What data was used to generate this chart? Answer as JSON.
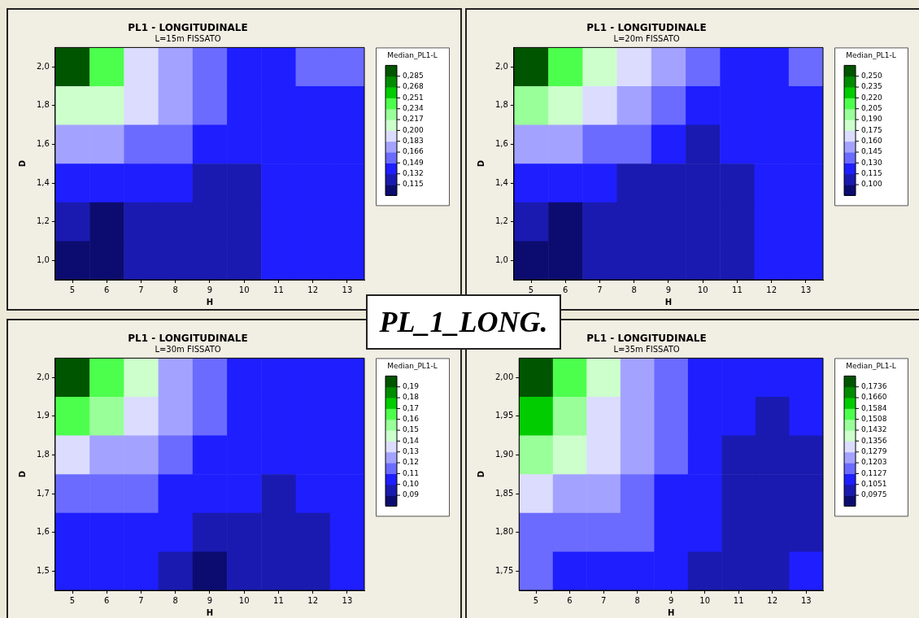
{
  "chart_data": [
    {
      "type": "heatmap",
      "title": "PL1 - LONGITUDINALE",
      "subtitle": "L=15m FISSATO",
      "xlabel": "H",
      "ylabel": "D",
      "clabel": "Median_PL1-L",
      "annotations": [
        "PL_1_LONG."
      ],
      "categories": [
        "5",
        "6",
        "7",
        "8",
        "9",
        "10",
        "11",
        "12",
        "13"
      ],
      "y_categories": [
        "2,0",
        "1,8",
        "1,6",
        "1,4",
        "1,2",
        "1,0"
      ],
      "cells": [
        [
          0.29,
          0.24,
          0.19,
          0.175,
          0.158,
          0.14,
          0.14,
          0.158,
          0.158
        ],
        [
          0.21,
          0.2,
          0.19,
          0.175,
          0.158,
          0.14,
          0.14,
          0.14,
          0.14
        ],
        [
          0.175,
          0.175,
          0.158,
          0.158,
          0.14,
          0.14,
          0.14,
          0.14,
          0.14
        ],
        [
          0.14,
          0.14,
          0.14,
          0.14,
          0.125,
          0.125,
          0.14,
          0.14,
          0.14
        ],
        [
          0.125,
          0.11,
          0.125,
          0.125,
          0.125,
          0.125,
          0.14,
          0.14,
          0.14
        ],
        [
          0.11,
          0.11,
          0.125,
          0.125,
          0.125,
          0.125,
          0.14,
          0.14,
          0.14
        ]
      ],
      "clim": [
        0.098,
        0.302
      ],
      "cticks": [
        {
          "value": 0.115,
          "label": "0,115"
        },
        {
          "value": 0.132,
          "label": "0,132"
        },
        {
          "value": 0.149,
          "label": "0,149"
        },
        {
          "value": 0.166,
          "label": "0,166"
        },
        {
          "value": 0.183,
          "label": "0,183"
        },
        {
          "value": 0.2,
          "label": "0,200"
        },
        {
          "value": 0.217,
          "label": "0,217"
        },
        {
          "value": 0.234,
          "label": "0,234"
        },
        {
          "value": 0.251,
          "label": "0,251"
        },
        {
          "value": 0.268,
          "label": "0,268"
        },
        {
          "value": 0.285,
          "label": "0,285"
        }
      ],
      "colors": [
        "#0c0c70",
        "#1a1ab0",
        "#1e1eff",
        "#6b6bff",
        "#a3a3ff",
        "#dcdcff",
        "#ccffcc",
        "#99ff99",
        "#4dff4d",
        "#00cc00",
        "#008c00",
        "#005500"
      ]
    },
    {
      "type": "heatmap",
      "title": "PL1 - LONGITUDINALE",
      "subtitle": "L=20m FISSATO",
      "xlabel": "H",
      "ylabel": "D",
      "clabel": "Median_PL1-L",
      "categories": [
        "5",
        "6",
        "7",
        "8",
        "9",
        "10",
        "11",
        "12",
        "13"
      ],
      "y_categories": [
        "2,0",
        "1,8",
        "1,6",
        "1,4",
        "1,2",
        "1,0"
      ],
      "cells": [
        [
          0.255,
          0.212,
          0.182,
          0.168,
          0.152,
          0.138,
          0.122,
          0.122,
          0.138
        ],
        [
          0.198,
          0.182,
          0.168,
          0.152,
          0.138,
          0.122,
          0.122,
          0.122,
          0.122
        ],
        [
          0.152,
          0.152,
          0.138,
          0.138,
          0.122,
          0.108,
          0.122,
          0.122,
          0.122
        ],
        [
          0.122,
          0.122,
          0.122,
          0.108,
          0.108,
          0.108,
          0.108,
          0.122,
          0.122
        ],
        [
          0.108,
          0.095,
          0.108,
          0.108,
          0.108,
          0.108,
          0.108,
          0.122,
          0.122
        ],
        [
          0.095,
          0.095,
          0.108,
          0.108,
          0.108,
          0.108,
          0.108,
          0.122,
          0.122
        ]
      ],
      "clim": [
        0.085,
        0.265
      ],
      "cticks": [
        {
          "value": 0.1,
          "label": "0,100"
        },
        {
          "value": 0.115,
          "label": "0,115"
        },
        {
          "value": 0.13,
          "label": "0,130"
        },
        {
          "value": 0.145,
          "label": "0,145"
        },
        {
          "value": 0.16,
          "label": "0,160"
        },
        {
          "value": 0.175,
          "label": "0,175"
        },
        {
          "value": 0.19,
          "label": "0,190"
        },
        {
          "value": 0.205,
          "label": "0,205"
        },
        {
          "value": 0.22,
          "label": "0,220"
        },
        {
          "value": 0.235,
          "label": "0,235"
        },
        {
          "value": 0.25,
          "label": "0,250"
        }
      ],
      "colors": [
        "#0c0c70",
        "#1a1ab0",
        "#1e1eff",
        "#6b6bff",
        "#a3a3ff",
        "#dcdcff",
        "#ccffcc",
        "#99ff99",
        "#4dff4d",
        "#00cc00",
        "#008c00",
        "#005500"
      ]
    },
    {
      "type": "heatmap",
      "title": "PL1 - LONGITUDINALE",
      "subtitle": "L=30m FISSATO",
      "xlabel": "H",
      "ylabel": "D",
      "clabel": "Median_PL1-L",
      "categories": [
        "5",
        "6",
        "7",
        "8",
        "9",
        "10",
        "11",
        "12",
        "13"
      ],
      "y_categories": [
        "2,0",
        "1,9",
        "1,8",
        "1,7",
        "1,6",
        "1,5"
      ],
      "cells": [
        [
          0.195,
          0.165,
          0.145,
          0.125,
          0.115,
          0.105,
          0.105,
          0.105,
          0.105
        ],
        [
          0.165,
          0.155,
          0.135,
          0.125,
          0.115,
          0.105,
          0.105,
          0.105,
          0.105
        ],
        [
          0.135,
          0.125,
          0.125,
          0.115,
          0.105,
          0.105,
          0.105,
          0.105,
          0.105
        ],
        [
          0.115,
          0.115,
          0.115,
          0.105,
          0.105,
          0.105,
          0.095,
          0.105,
          0.105
        ],
        [
          0.105,
          0.105,
          0.105,
          0.105,
          0.095,
          0.095,
          0.095,
          0.095,
          0.105
        ],
        [
          0.105,
          0.105,
          0.105,
          0.095,
          0.085,
          0.095,
          0.095,
          0.095,
          0.105
        ]
      ],
      "clim": [
        0.08,
        0.2
      ],
      "cticks": [
        {
          "value": 0.09,
          "label": "0,09"
        },
        {
          "value": 0.1,
          "label": "0,10"
        },
        {
          "value": 0.11,
          "label": "0,11"
        },
        {
          "value": 0.12,
          "label": "0,12"
        },
        {
          "value": 0.13,
          "label": "0,13"
        },
        {
          "value": 0.14,
          "label": "0,14"
        },
        {
          "value": 0.15,
          "label": "0,15"
        },
        {
          "value": 0.16,
          "label": "0,16"
        },
        {
          "value": 0.17,
          "label": "0,17"
        },
        {
          "value": 0.18,
          "label": "0,18"
        },
        {
          "value": 0.19,
          "label": "0,19"
        }
      ],
      "colors": [
        "#0c0c70",
        "#1a1ab0",
        "#1e1eff",
        "#6b6bff",
        "#a3a3ff",
        "#dcdcff",
        "#ccffcc",
        "#99ff99",
        "#4dff4d",
        "#00cc00",
        "#008c00",
        "#005500"
      ]
    },
    {
      "type": "heatmap",
      "title": "PL1 - LONGITUDINALE",
      "subtitle": "L=35m FISSATO",
      "xlabel": "H",
      "ylabel": "D",
      "clabel": "Median_PL1-L",
      "categories": [
        "5",
        "6",
        "7",
        "8",
        "9",
        "10",
        "11",
        "12",
        "13"
      ],
      "y_categories": [
        "2,00",
        "1,95",
        "1,90",
        "1,85",
        "1,80",
        "1,75"
      ],
      "cells": [
        [
          0.176,
          0.155,
          0.139,
          0.124,
          0.116,
          0.109,
          0.109,
          0.109,
          0.109
        ],
        [
          0.162,
          0.147,
          0.132,
          0.124,
          0.116,
          0.109,
          0.109,
          0.101,
          0.109
        ],
        [
          0.147,
          0.139,
          0.132,
          0.124,
          0.116,
          0.109,
          0.101,
          0.101,
          0.101
        ],
        [
          0.132,
          0.124,
          0.124,
          0.116,
          0.109,
          0.109,
          0.101,
          0.101,
          0.101
        ],
        [
          0.116,
          0.116,
          0.116,
          0.116,
          0.109,
          0.109,
          0.101,
          0.101,
          0.101
        ],
        [
          0.116,
          0.109,
          0.109,
          0.109,
          0.109,
          0.101,
          0.101,
          0.101,
          0.109
        ]
      ],
      "clim": [
        0.0899,
        0.1812
      ],
      "cticks": [
        {
          "value": 0.0975,
          "label": "0,0975"
        },
        {
          "value": 0.1051,
          "label": "0,1051"
        },
        {
          "value": 0.1127,
          "label": "0,1127"
        },
        {
          "value": 0.1203,
          "label": "0,1203"
        },
        {
          "value": 0.1279,
          "label": "0,1279"
        },
        {
          "value": 0.1356,
          "label": "0,1356"
        },
        {
          "value": 0.1432,
          "label": "0,1432"
        },
        {
          "value": 0.1508,
          "label": "0,1508"
        },
        {
          "value": 0.1584,
          "label": "0,1584"
        },
        {
          "value": 0.166,
          "label": "0,1660"
        },
        {
          "value": 0.1736,
          "label": "0,1736"
        }
      ],
      "colors": [
        "#0c0c70",
        "#1a1ab0",
        "#1e1eff",
        "#6b6bff",
        "#a3a3ff",
        "#dcdcff",
        "#ccffcc",
        "#99ff99",
        "#4dff4d",
        "#00cc00",
        "#008c00",
        "#005500"
      ]
    }
  ]
}
